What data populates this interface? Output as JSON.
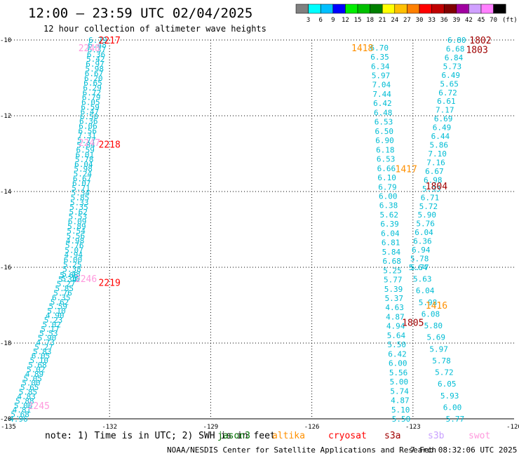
{
  "title": "12:00 – 23:59 UTC 02/04/2025",
  "subtitle": "12 hour collection of altimeter wave heights",
  "scale": {
    "labels": [
      "3",
      "6",
      "9",
      "12",
      "15",
      "18",
      "21",
      "24",
      "27",
      "30",
      "33",
      "36",
      "39",
      "42",
      "45",
      "70"
    ],
    "unit": "(ft)",
    "colors": [
      "#808080",
      "#00ffff",
      "#00bfff",
      "#0000ff",
      "#00ee00",
      "#00c000",
      "#008000",
      "#ffff00",
      "#ffc000",
      "#ff8000",
      "#ff0000",
      "#c00000",
      "#800000",
      "#a000a0",
      "#d0a0ff",
      "#ff80ff",
      "#000000"
    ]
  },
  "footer": {
    "note": "note:  1) Time is in UTC; 2) SWH is in feet",
    "credit": "NOAA/NESDIS Center for Satellite Applications and Research",
    "timestamp": "7 Feb 08:32:06 UTC 2025"
  },
  "chart_data": {
    "type": "scatter",
    "xlim": [
      -135,
      -120
    ],
    "ylim": [
      -20,
      -10
    ],
    "xticks": [
      "-135",
      "-132",
      "-129",
      "-126",
      "-123",
      "-120"
    ],
    "yticks": [
      "-10",
      "-12",
      "-14",
      "-16",
      "-18",
      "-20"
    ],
    "grid": true,
    "legend": [
      {
        "name": "jason3",
        "color": "#007000"
      },
      {
        "name": "altika",
        "color": "#ff9000"
      },
      {
        "name": "cryosat",
        "color": "#ff0000"
      },
      {
        "name": "s3a",
        "color": "#a00000"
      },
      {
        "name": "s3b",
        "color": "#c8a0ff"
      },
      {
        "name": "swot",
        "color": "#ff99dd"
      }
    ],
    "time_labels": [
      {
        "text": "2217",
        "lon": -132.0,
        "lat": -10.0,
        "color": "#ff0000"
      },
      {
        "text": "2248",
        "lon": -132.6,
        "lat": -10.2,
        "color": "#ff99dd"
      },
      {
        "text": "2218",
        "lon": -132.0,
        "lat": -12.75,
        "color": "#ff0000"
      },
      {
        "text": "2247",
        "lon": -132.6,
        "lat": -12.7,
        "color": "#ff99dd"
      },
      {
        "text": "2219",
        "lon": -132.0,
        "lat": -16.4,
        "color": "#ff0000"
      },
      {
        "text": "2246",
        "lon": -132.7,
        "lat": -16.3,
        "color": "#ff99dd"
      },
      {
        "text": "2245",
        "lon": -134.1,
        "lat": -19.65,
        "color": "#ff99dd"
      },
      {
        "text": "1418",
        "lon": -124.5,
        "lat": -10.2,
        "color": "#ff9000"
      },
      {
        "text": "1417",
        "lon": -123.2,
        "lat": -13.4,
        "color": "#ff9000"
      },
      {
        "text": "1416",
        "lon": -122.3,
        "lat": -17.0,
        "color": "#ff9000"
      },
      {
        "text": "1802",
        "lon": -121.0,
        "lat": -10.0,
        "color": "#a00000"
      },
      {
        "text": "1803",
        "lon": -121.1,
        "lat": -10.25,
        "color": "#a00000"
      },
      {
        "text": "1804",
        "lon": -122.3,
        "lat": -13.85,
        "color": "#a00000"
      },
      {
        "text": "1805",
        "lon": -123.0,
        "lat": -17.45,
        "color": "#a00000"
      }
    ],
    "tracks": [
      {
        "name": "track-1",
        "color": "#00bcd4",
        "lon_start": -132.35,
        "lon_end": -133.15,
        "lat_start": -10.0,
        "lat_end": -16.3,
        "values": [
          "6.79",
          "6.48",
          "6.37",
          "6.36",
          "5.42",
          "6.97",
          "5.98",
          "6.67",
          "6.20",
          "6.65",
          "6.29",
          "6.72",
          "6.79",
          "6.05",
          "6.59",
          "6.47",
          "6.50",
          "6.36",
          "6.06",
          "6.56",
          "7.31",
          "5.77",
          "5.84",
          "6.59",
          "6.01",
          "5.78",
          "6.04",
          "5.98",
          "5.24",
          "6.67",
          "6.07",
          "5.71",
          "5.34",
          "5.85",
          "5.33",
          "5.35",
          "5.62",
          "5.53",
          "6.09",
          "5.89",
          "5.54",
          "5.56",
          "4.98",
          "5.76",
          "5.07",
          "4.94",
          "6.00",
          "5.25",
          "5.38",
          "5.43",
          "5.10"
        ]
      },
      {
        "name": "track-2",
        "color": "#00bcd4",
        "lon_start": -133.2,
        "lon_end": -134.7,
        "lat_start": -16.2,
        "lat_end": -20.0,
        "values": [
          "5.68",
          "5.34",
          "5.27",
          "5.85",
          "5.76",
          "6.35",
          "5.62",
          "5.59",
          "5.10",
          "4.90",
          "5.23",
          "5.02",
          "5.17",
          "5.53",
          "5.90",
          "4.73",
          "5.27",
          "5.83",
          "6.05",
          "5.10",
          "5.68",
          "5.02",
          "4.89",
          "5.05",
          "5.00",
          "5.65",
          "5.85",
          "4.83",
          "5.88",
          "5.06",
          "4.81",
          "5.68",
          "4.96"
        ]
      },
      {
        "name": "track-3",
        "color": "#00bcd4",
        "lon_start": -124.0,
        "lon_end": -123.35,
        "lat_start": -10.2,
        "lat_end": -20.0,
        "values": [
          "6.70",
          "6.35",
          "6.34",
          "5.97",
          "7.04",
          "7.44",
          "6.42",
          "6.48",
          "6.53",
          "6.50",
          "6.90",
          "6.18",
          "6.53",
          "6.66",
          "6.10",
          "6.79",
          "6.00",
          "6.38",
          "5.62",
          "6.39",
          "6.04",
          "6.81",
          "5.84",
          "6.68",
          "5.25",
          "5.77",
          "5.39",
          "5.37",
          "4.63",
          "4.87",
          "4.94",
          "5.64",
          "5.50",
          "6.42",
          "6.00",
          "5.56",
          "5.00",
          "5.74",
          "4.87",
          "5.10",
          "5.50"
        ]
      },
      {
        "name": "track-4",
        "color": "#00bcd4",
        "lon_start": -121.7,
        "lon_end": -122.85,
        "lat_start": -10.0,
        "lat_end": -16.0,
        "values": [
          "6.80",
          "6.68",
          "6.84",
          "5.73",
          "6.49",
          "5.65",
          "6.72",
          "6.61",
          "7.17",
          "6.69",
          "6.49",
          "6.44",
          "5.86",
          "7.10",
          "7.16",
          "6.67",
          "6.98",
          "5.93",
          "6.71",
          "5.72",
          "5.90",
          "5.76",
          "6.04",
          "6.36",
          "6.94",
          "5.78",
          "5.64"
        ]
      },
      {
        "name": "track-5",
        "color": "#00bcd4",
        "lon_start": -122.8,
        "lon_end": -121.75,
        "lat_start": -16.0,
        "lat_end": -20.0,
        "values": [
          "5.77",
          "5.63",
          "6.04",
          "5.98",
          "6.08",
          "5.80",
          "5.69",
          "5.97",
          "5.78",
          "5.72",
          "6.05",
          "5.93",
          "6.00",
          "5.77"
        ]
      }
    ]
  }
}
